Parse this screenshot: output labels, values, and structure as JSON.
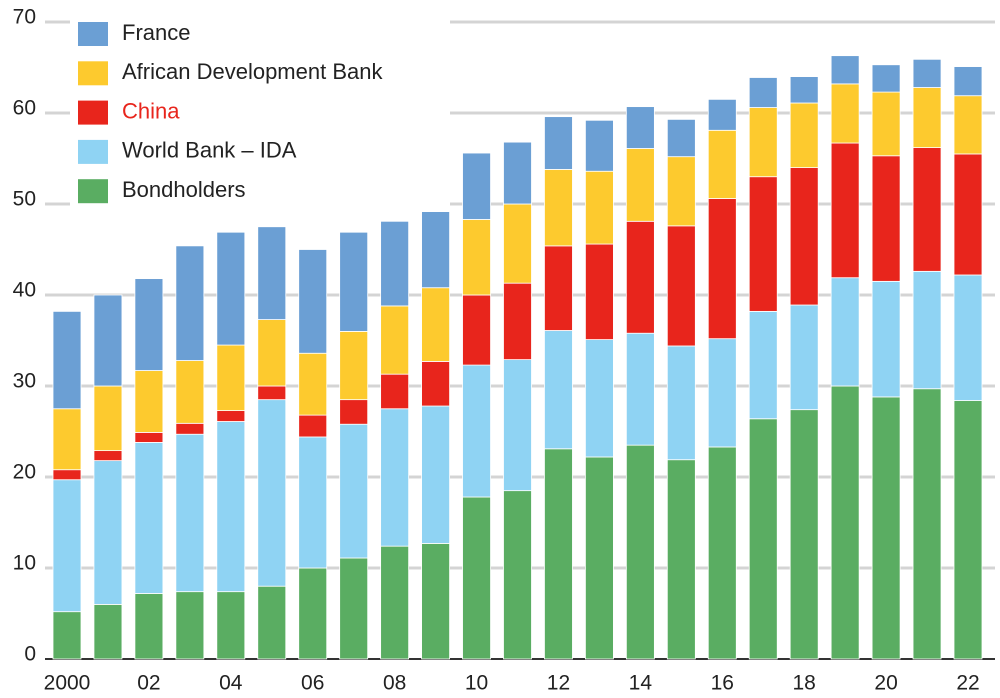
{
  "chart_data": {
    "type": "stacked_bar",
    "categories": [
      "2000",
      null,
      "02",
      null,
      "04",
      null,
      "06",
      null,
      "08",
      null,
      "10",
      null,
      "12",
      null,
      "14",
      null,
      "16",
      null,
      "18",
      null,
      "20",
      null,
      "22"
    ],
    "series": [
      {
        "name": "Bondholders",
        "color": "#5aad62",
        "values": [
          5.2,
          6,
          7.2,
          7.4,
          7.4,
          8,
          10,
          11.1,
          12.4,
          12.7,
          17.8,
          18.5,
          23.1,
          22.2,
          23.5,
          21.9,
          23.3,
          26.4,
          27.4,
          30,
          28.8,
          29.7,
          28.4
        ]
      },
      {
        "name": "World Bank – IDA",
        "color": "#8fd3f3",
        "values": [
          14.5,
          15.8,
          16.6,
          17.3,
          18.7,
          20.5,
          14.4,
          14.7,
          15.1,
          15.1,
          14.5,
          14.4,
          13,
          12.9,
          12.3,
          12.5,
          11.9,
          11.8,
          11.5,
          11.9,
          12.7,
          12.9,
          13.8
        ]
      },
      {
        "name": "China",
        "color": "#e8251c",
        "label_color": "#e8251c",
        "values": [
          1.1,
          1.1,
          1.1,
          1.2,
          1.2,
          1.5,
          2.4,
          2.7,
          3.8,
          4.9,
          7.7,
          8.4,
          9.3,
          10.5,
          12.3,
          13.2,
          15.4,
          14.8,
          15.1,
          14.8,
          13.8,
          13.6,
          13.3
        ]
      },
      {
        "name": "African Development Bank",
        "color": "#fdca2e",
        "values": [
          6.7,
          7.1,
          6.8,
          6.9,
          7.2,
          7.3,
          6.8,
          7.5,
          7.5,
          8.1,
          8.3,
          8.7,
          8.4,
          8,
          8,
          7.6,
          7.5,
          7.6,
          7.1,
          6.5,
          7,
          6.6,
          6.4
        ]
      },
      {
        "name": "France",
        "color": "#6b9fd4",
        "values": [
          10.7,
          10,
          10.1,
          12.6,
          12.4,
          10.2,
          11.4,
          10.9,
          9.3,
          9.4,
          7.3,
          6.8,
          5.8,
          5.6,
          4.6,
          4.1,
          3.4,
          3.3,
          2.9,
          3.1,
          3,
          3.1,
          3.2
        ]
      }
    ],
    "ylim": [
      0,
      70
    ],
    "yticks": [
      0,
      10,
      20,
      30,
      40,
      50,
      60,
      70
    ],
    "grid": true,
    "legend": "top-left"
  }
}
